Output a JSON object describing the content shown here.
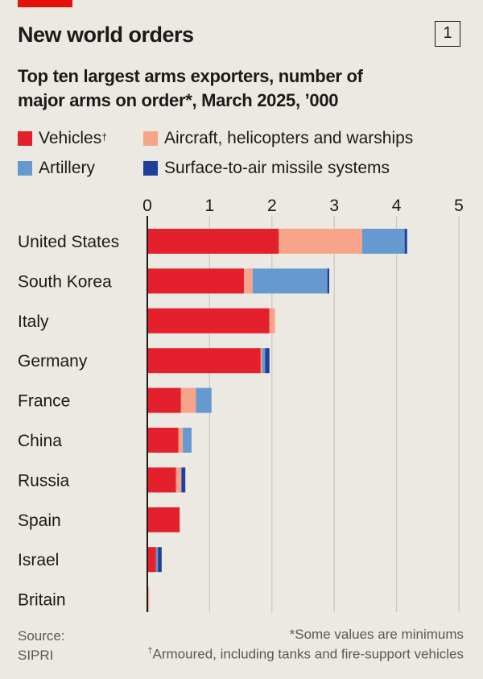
{
  "header": {
    "title": "New world orders",
    "badge": "1",
    "subtitle_line1": "Top ten largest arms exporters, number of",
    "subtitle_line2": "major arms on order*, March 2025, ’000"
  },
  "legend": [
    {
      "label": "Vehicles",
      "sup": "†",
      "color": "#e3202b"
    },
    {
      "label": "Aircraft, helicopters and warships",
      "sup": "",
      "color": "#f7a48a"
    },
    {
      "label": "Artillery",
      "sup": "",
      "color": "#6699d0"
    },
    {
      "label": "Surface-to-air missile systems",
      "sup": "",
      "color": "#1f3f99"
    }
  ],
  "footer": {
    "source_line1": "Source:",
    "source_line2": "SIPRI",
    "note1": "*Some values are minimums",
    "note2_sup": "†",
    "note2": "Armoured, including tanks and fire-support vehicles"
  },
  "chart_data": {
    "type": "bar",
    "orientation": "horizontal",
    "stacked": true,
    "title": "New world orders",
    "subtitle": "Top ten largest arms exporters, number of major arms on order*, March 2025, ’000",
    "xlim": [
      0,
      5
    ],
    "xticks": [
      "0",
      "1",
      "2",
      "3",
      "4",
      "5"
    ],
    "grid": true,
    "legend_position": "top",
    "categories": [
      "United States",
      "South Korea",
      "Italy",
      "Germany",
      "France",
      "China",
      "Russia",
      "Spain",
      "Israel",
      "Britain"
    ],
    "series": [
      {
        "name": "Vehicles",
        "color": "#e3202b",
        "values": [
          2.11,
          1.55,
          1.96,
          1.82,
          0.54,
          0.5,
          0.46,
          0.52,
          0.14,
          0.0
        ]
      },
      {
        "name": "Aircraft, helicopters and warships",
        "color": "#f7a48a",
        "values": [
          1.34,
          0.14,
          0.09,
          0.02,
          0.24,
          0.07,
          0.08,
          0.0,
          0.0,
          0.03
        ]
      },
      {
        "name": "Artillery",
        "color": "#6699d0",
        "values": [
          0.68,
          1.2,
          0.0,
          0.05,
          0.25,
          0.14,
          0.01,
          0.0,
          0.03,
          0.0
        ]
      },
      {
        "name": "Surface-to-air missile systems",
        "color": "#1f3f99",
        "values": [
          0.04,
          0.03,
          0.0,
          0.07,
          0.0,
          0.0,
          0.06,
          0.0,
          0.06,
          0.0
        ]
      }
    ]
  }
}
